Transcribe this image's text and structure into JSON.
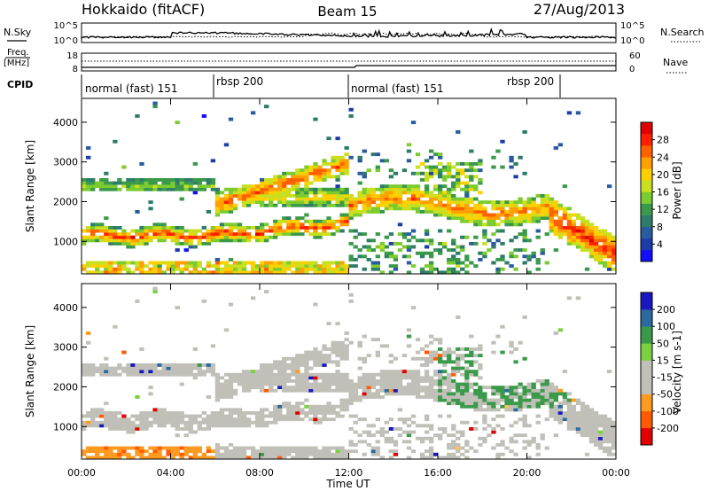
{
  "header": {
    "site": "Hokkaido (fitACF)",
    "beam": "Beam 15",
    "date": "27/Aug/2013"
  },
  "top_panels": {
    "nsky_label": "N.Sky",
    "nsearch_label": "N.Search",
    "nsky_ticks": [
      "10^5",
      "10^0"
    ],
    "nsearch_ticks": [
      "10^5",
      "10^0"
    ],
    "freq_label_1": "Freq.",
    "freq_label_2": "[MHz]",
    "freq_ticks": [
      "18",
      "8"
    ],
    "nave_label": "Nave",
    "nave_ticks": [
      "60",
      "0"
    ],
    "cpid_label": "CPID",
    "cpid_segments": [
      {
        "label": "normal (fast) 151",
        "start": "00:00"
      },
      {
        "label": "rbsp 200",
        "start": "06:00"
      },
      {
        "label": "normal (fast) 151",
        "start": "12:00"
      },
      {
        "label": "rbsp 200",
        "start": "21:30"
      }
    ]
  },
  "chart_data": [
    {
      "type": "heatmap",
      "quantity": "Power",
      "xlabel": "Time UT",
      "ylabel": "Slant Range [km]",
      "x_range_hours": [
        0,
        24
      ],
      "x_ticks": [
        "00:00",
        "04:00",
        "08:00",
        "12:00",
        "16:00",
        "20:00",
        "00:00"
      ],
      "y_range_km": [
        180,
        4600
      ],
      "y_ticks": [
        "1000",
        "2000",
        "3000",
        "4000"
      ],
      "colorbar": {
        "label": "Power [dB]",
        "ticks": [
          "4",
          "8",
          "12",
          "16",
          "20",
          "24",
          "28"
        ],
        "range": [
          0,
          30
        ]
      },
      "features": [
        {
          "name": "main near-range band",
          "time_h": [
            0,
            12
          ],
          "range_km": [
            900,
            1500
          ],
          "power_db": 26
        },
        {
          "name": "upper band",
          "time_h": [
            0,
            6
          ],
          "range_km": [
            2250,
            2550
          ],
          "power_db": 14
        },
        {
          "name": "rising arc",
          "time_h": [
            6,
            12
          ],
          "range_km": [
            1800,
            3300
          ],
          "power_db": 24
        },
        {
          "name": "afternoon band",
          "time_h": [
            12,
            21
          ],
          "range_km": [
            1600,
            2300
          ],
          "power_db": 23
        },
        {
          "name": "late evening band",
          "time_h": [
            21,
            24
          ],
          "range_km": [
            600,
            2000
          ],
          "power_db": 26
        }
      ]
    },
    {
      "type": "heatmap",
      "quantity": "Velocity",
      "xlabel": "Time UT",
      "ylabel": "Slant Range [km]",
      "x_range_hours": [
        0,
        24
      ],
      "x_ticks": [
        "00:00",
        "04:00",
        "08:00",
        "12:00",
        "16:00",
        "20:00",
        "00:00"
      ],
      "y_range_km": [
        180,
        4600
      ],
      "y_ticks": [
        "1000",
        "2000",
        "3000",
        "4000"
      ],
      "colorbar": {
        "label": "Velocity [m s-1]",
        "ticks": [
          "200",
          "100",
          "50",
          "15",
          "-15",
          "-50",
          "-100",
          "-200"
        ],
        "range": [
          -250,
          250
        ]
      },
      "features": [
        {
          "name": "ground scatter",
          "time_h": [
            0,
            24
          ],
          "range_km": [
            300,
            3200
          ],
          "velocity_ms": 0
        },
        {
          "name": "ionospheric streaks",
          "time_h": [
            16,
            22
          ],
          "range_km": [
            1500,
            3000
          ],
          "velocity_ms": 40
        },
        {
          "name": "near-range echoes",
          "time_h": [
            0,
            6
          ],
          "range_km": [
            200,
            500
          ],
          "velocity_ms": -60
        }
      ]
    }
  ]
}
